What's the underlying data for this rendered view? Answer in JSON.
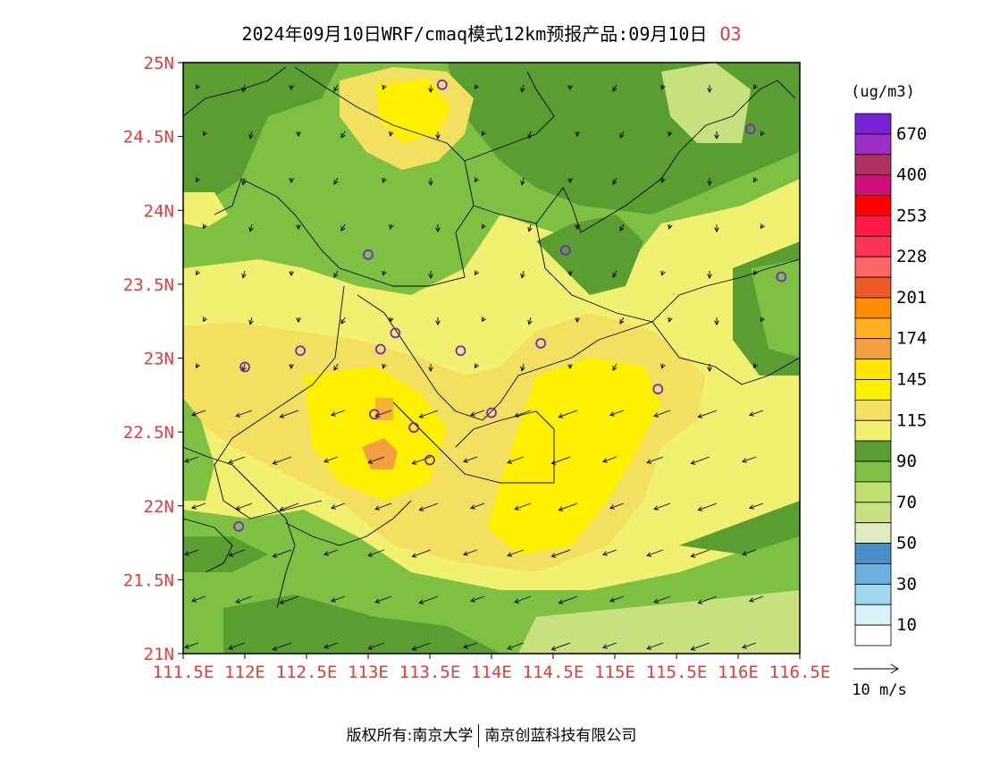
{
  "title": {
    "main": "2024年09月10日WRF/cmaq模式12km预报产品:09月10日",
    "species": "O3"
  },
  "map": {
    "lat_labels": [
      "25N",
      "24.5N",
      "24N",
      "23.5N",
      "23N",
      "22.5N",
      "22N",
      "21.5N",
      "21N"
    ],
    "lon_labels": [
      "111.5E",
      "112E",
      "112.5E",
      "113E",
      "113.5E",
      "114E",
      "114.5E",
      "115E",
      "115.5E",
      "116E",
      "116.5E"
    ],
    "lat_range": [
      21,
      25
    ],
    "lon_range": [
      111.5,
      116.5
    ],
    "label_color": "#e03c3c"
  },
  "colorbar": {
    "unit": "(ug/m3)",
    "colors": [
      "#7a22d6",
      "#9b2fc7",
      "#b03060",
      "#d0107a",
      "#ff0000",
      "#ff1a4a",
      "#ff3355",
      "#ff6666",
      "#f05a28",
      "#ff8c00",
      "#ffb020",
      "#f5a040",
      "#ffe600",
      "#fff000",
      "#f3e060",
      "#f2f070",
      "#5a9e32",
      "#7ec042",
      "#c0e070",
      "#c8e080",
      "#e0ecc0",
      "#4a90c8",
      "#6bb0e0",
      "#a0d8f0",
      "#d8f0f8",
      "#ffffff"
    ],
    "labels": [
      "670",
      "400",
      "253",
      "228",
      "201",
      "174",
      "145",
      "115",
      "90",
      "70",
      "50",
      "30",
      "10"
    ]
  },
  "wind_legend": {
    "label": "10 m/s"
  },
  "stations": [
    [
      113.6,
      24.85
    ],
    [
      116.1,
      24.55
    ],
    [
      113.0,
      23.7
    ],
    [
      114.6,
      23.73
    ],
    [
      116.35,
      23.55
    ],
    [
      113.22,
      23.17
    ],
    [
      113.1,
      23.06
    ],
    [
      112.45,
      23.05
    ],
    [
      113.75,
      23.05
    ],
    [
      114.4,
      23.1
    ],
    [
      112.0,
      22.94
    ],
    [
      115.35,
      22.79
    ],
    [
      113.05,
      22.62
    ],
    [
      114.0,
      22.63
    ],
    [
      113.37,
      22.53
    ],
    [
      113.5,
      22.31
    ],
    [
      111.95,
      21.86
    ]
  ],
  "footer": {
    "copyright_prefix": "版权所有:",
    "org1": "南京大学",
    "org2": "南京创蓝科技有限公司"
  }
}
